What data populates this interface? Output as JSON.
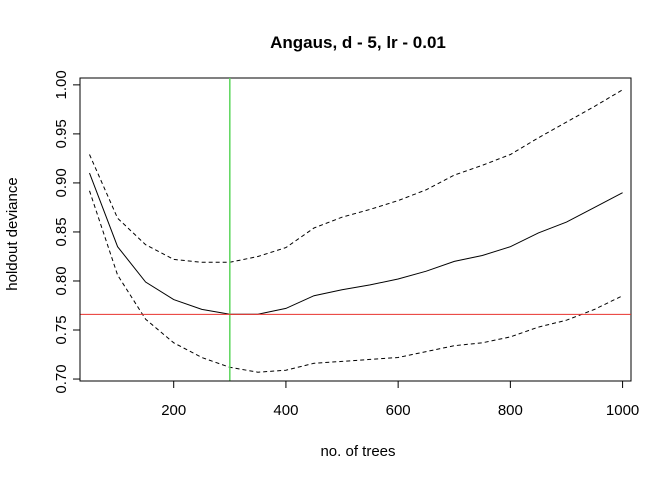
{
  "chart_data": {
    "type": "line",
    "title": "Angaus, d - 5, lr - 0.01",
    "xlabel": "no. of trees",
    "ylabel": "holdout deviance",
    "xlim": [
      33,
      1015
    ],
    "ylim": [
      0.698,
      1.007
    ],
    "x_ticks": [
      200,
      400,
      600,
      800,
      1000
    ],
    "y_ticks": [
      0.7,
      0.75,
      0.8,
      0.85,
      0.9,
      0.95,
      1.0
    ],
    "y_tick_labels": [
      "0.70",
      "0.75",
      "0.80",
      "0.85",
      "0.90",
      "0.95",
      "1.00"
    ],
    "x": [
      50,
      100,
      150,
      200,
      250,
      300,
      350,
      400,
      450,
      500,
      550,
      600,
      650,
      700,
      750,
      800,
      850,
      900,
      950,
      1000
    ],
    "series": [
      {
        "style": "solid",
        "values": [
          0.91,
          0.835,
          0.799,
          0.781,
          0.771,
          0.766,
          0.766,
          0.772,
          0.785,
          0.791,
          0.796,
          0.802,
          0.81,
          0.82,
          0.826,
          0.835,
          0.849,
          0.86,
          0.875,
          0.89
        ]
      },
      {
        "style": "dashed",
        "values": [
          0.929,
          0.864,
          0.837,
          0.822,
          0.819,
          0.819,
          0.825,
          0.834,
          0.854,
          0.865,
          0.873,
          0.882,
          0.893,
          0.908,
          0.918,
          0.929,
          0.946,
          0.962,
          0.978,
          0.995
        ]
      },
      {
        "style": "dashed",
        "values": [
          0.892,
          0.806,
          0.761,
          0.737,
          0.722,
          0.712,
          0.707,
          0.709,
          0.716,
          0.718,
          0.72,
          0.722,
          0.728,
          0.734,
          0.737,
          0.743,
          0.753,
          0.76,
          0.771,
          0.785
        ]
      }
    ],
    "vline": {
      "x": 300,
      "color": "#5cd65c"
    },
    "hline": {
      "y": 0.766,
      "color": "#e8322e"
    },
    "grid": false,
    "legend": "none"
  }
}
